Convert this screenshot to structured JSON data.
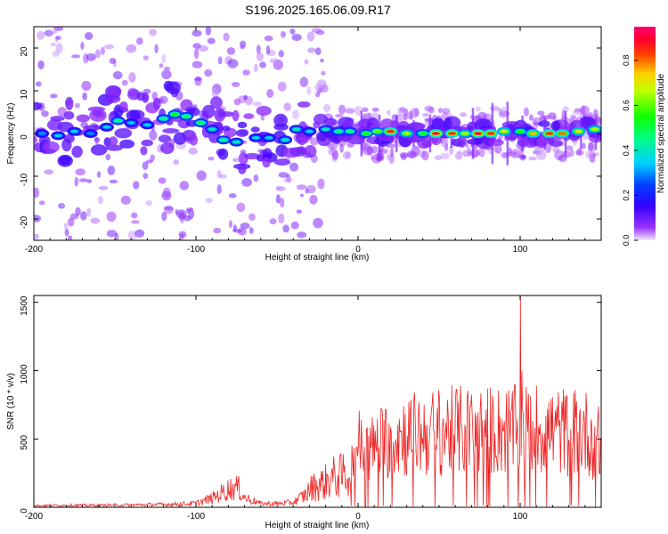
{
  "title": "S196.2025.165.06.09.R17",
  "chart_data": [
    {
      "type": "heatmap",
      "xlabel": "Height of straight line (km)",
      "ylabel": "Frequency (Hz)",
      "xlim": [
        -200,
        150
      ],
      "ylim": [
        -25,
        25
      ],
      "xticks": [
        -200,
        -100,
        0,
        100
      ],
      "yticks": [
        -20,
        -10,
        0,
        10,
        20
      ],
      "colorbar": {
        "label": "Normalized spectral amplitude",
        "range": [
          0,
          0.95
        ],
        "ticks": [
          0.0,
          0.2,
          0.4,
          0.6,
          0.8
        ],
        "colormap": "hsv-rainbow",
        "colors": [
          "#e8e0ff",
          "#7700ff",
          "#0000ff",
          "#00e0ff",
          "#00ff40",
          "#c0ff00",
          "#ffc000",
          "#ff2000",
          "#ff0060"
        ]
      },
      "ridge": [
        {
          "x": -195,
          "f": 0.0,
          "a": 0.3
        },
        {
          "x": -185,
          "f": -0.5,
          "a": 0.35
        },
        {
          "x": -175,
          "f": 0.5,
          "a": 0.35
        },
        {
          "x": -165,
          "f": 0.0,
          "a": 0.3
        },
        {
          "x": -155,
          "f": 1.5,
          "a": 0.35
        },
        {
          "x": -148,
          "f": 3.0,
          "a": 0.45
        },
        {
          "x": -140,
          "f": 2.5,
          "a": 0.35
        },
        {
          "x": -130,
          "f": 2.0,
          "a": 0.35
        },
        {
          "x": -120,
          "f": 3.5,
          "a": 0.45
        },
        {
          "x": -113,
          "f": 4.5,
          "a": 0.55
        },
        {
          "x": -106,
          "f": 4.0,
          "a": 0.5
        },
        {
          "x": -97,
          "f": 2.5,
          "a": 0.5
        },
        {
          "x": -90,
          "f": 1.0,
          "a": 0.4
        },
        {
          "x": -83,
          "f": -1.5,
          "a": 0.45
        },
        {
          "x": -75,
          "f": -2.0,
          "a": 0.4
        },
        {
          "x": -63,
          "f": -1.0,
          "a": 0.35
        },
        {
          "x": -55,
          "f": -1.0,
          "a": 0.35
        },
        {
          "x": -45,
          "f": -1.5,
          "a": 0.4
        },
        {
          "x": -38,
          "f": 1.0,
          "a": 0.4
        },
        {
          "x": -30,
          "f": 0.5,
          "a": 0.35
        },
        {
          "x": -20,
          "f": 1.0,
          "a": 0.4
        },
        {
          "x": -12,
          "f": 0.5,
          "a": 0.45
        },
        {
          "x": -5,
          "f": 0.5,
          "a": 0.45
        },
        {
          "x": 5,
          "f": 0.0,
          "a": 0.55
        },
        {
          "x": 12,
          "f": 0.5,
          "a": 0.6
        },
        {
          "x": 20,
          "f": 0.5,
          "a": 0.85
        },
        {
          "x": 30,
          "f": 0.0,
          "a": 0.65
        },
        {
          "x": 40,
          "f": 0.0,
          "a": 0.55
        },
        {
          "x": 48,
          "f": 0.0,
          "a": 0.9
        },
        {
          "x": 58,
          "f": 0.0,
          "a": 0.85
        },
        {
          "x": 66,
          "f": 0.0,
          "a": 0.65
        },
        {
          "x": 74,
          "f": 0.0,
          "a": 0.9
        },
        {
          "x": 82,
          "f": 0.0,
          "a": 0.85
        },
        {
          "x": 90,
          "f": 0.5,
          "a": 0.7
        },
        {
          "x": 100,
          "f": 0.5,
          "a": 0.55
        },
        {
          "x": 108,
          "f": 0.0,
          "a": 0.75
        },
        {
          "x": 118,
          "f": 0.0,
          "a": 0.85
        },
        {
          "x": 126,
          "f": 0.0,
          "a": 0.8
        },
        {
          "x": 136,
          "f": 0.5,
          "a": 0.7
        },
        {
          "x": 146,
          "f": 1.0,
          "a": 0.65
        }
      ]
    },
    {
      "type": "line",
      "xlabel": "Height of straight line (km)",
      "ylabel": "SNR (10 * v/v)",
      "xlim": [
        -200,
        150
      ],
      "ylim": [
        0,
        1550
      ],
      "xticks": [
        -200,
        -100,
        0,
        100
      ],
      "yticks": [
        0,
        500,
        1000,
        1500
      ],
      "color": "#ee2222",
      "envelope": [
        {
          "x": -200,
          "y": 20
        },
        {
          "x": -180,
          "y": 25
        },
        {
          "x": -160,
          "y": 25
        },
        {
          "x": -140,
          "y": 30
        },
        {
          "x": -120,
          "y": 35
        },
        {
          "x": -110,
          "y": 40
        },
        {
          "x": -100,
          "y": 50
        },
        {
          "x": -90,
          "y": 110
        },
        {
          "x": -80,
          "y": 220
        },
        {
          "x": -74,
          "y": 240
        },
        {
          "x": -70,
          "y": 120
        },
        {
          "x": -60,
          "y": 45
        },
        {
          "x": -50,
          "y": 45
        },
        {
          "x": -40,
          "y": 60
        },
        {
          "x": -33,
          "y": 150
        },
        {
          "x": -28,
          "y": 260
        },
        {
          "x": -22,
          "y": 300
        },
        {
          "x": -15,
          "y": 380
        },
        {
          "x": -10,
          "y": 400
        },
        {
          "x": -5,
          "y": 450
        },
        {
          "x": 0,
          "y": 750
        },
        {
          "x": 5,
          "y": 650
        },
        {
          "x": 10,
          "y": 700
        },
        {
          "x": 20,
          "y": 820
        },
        {
          "x": 30,
          "y": 850
        },
        {
          "x": 40,
          "y": 860
        },
        {
          "x": 50,
          "y": 880
        },
        {
          "x": 60,
          "y": 900
        },
        {
          "x": 70,
          "y": 890
        },
        {
          "x": 80,
          "y": 900
        },
        {
          "x": 90,
          "y": 900
        },
        {
          "x": 100,
          "y": 900
        },
        {
          "x": 110,
          "y": 920
        },
        {
          "x": 120,
          "y": 900
        },
        {
          "x": 130,
          "y": 880
        },
        {
          "x": 140,
          "y": 880
        },
        {
          "x": 150,
          "y": 720
        }
      ],
      "spikes": [
        {
          "x": 100,
          "y": 1550
        },
        {
          "x": 101,
          "y": 1000
        }
      ]
    }
  ]
}
